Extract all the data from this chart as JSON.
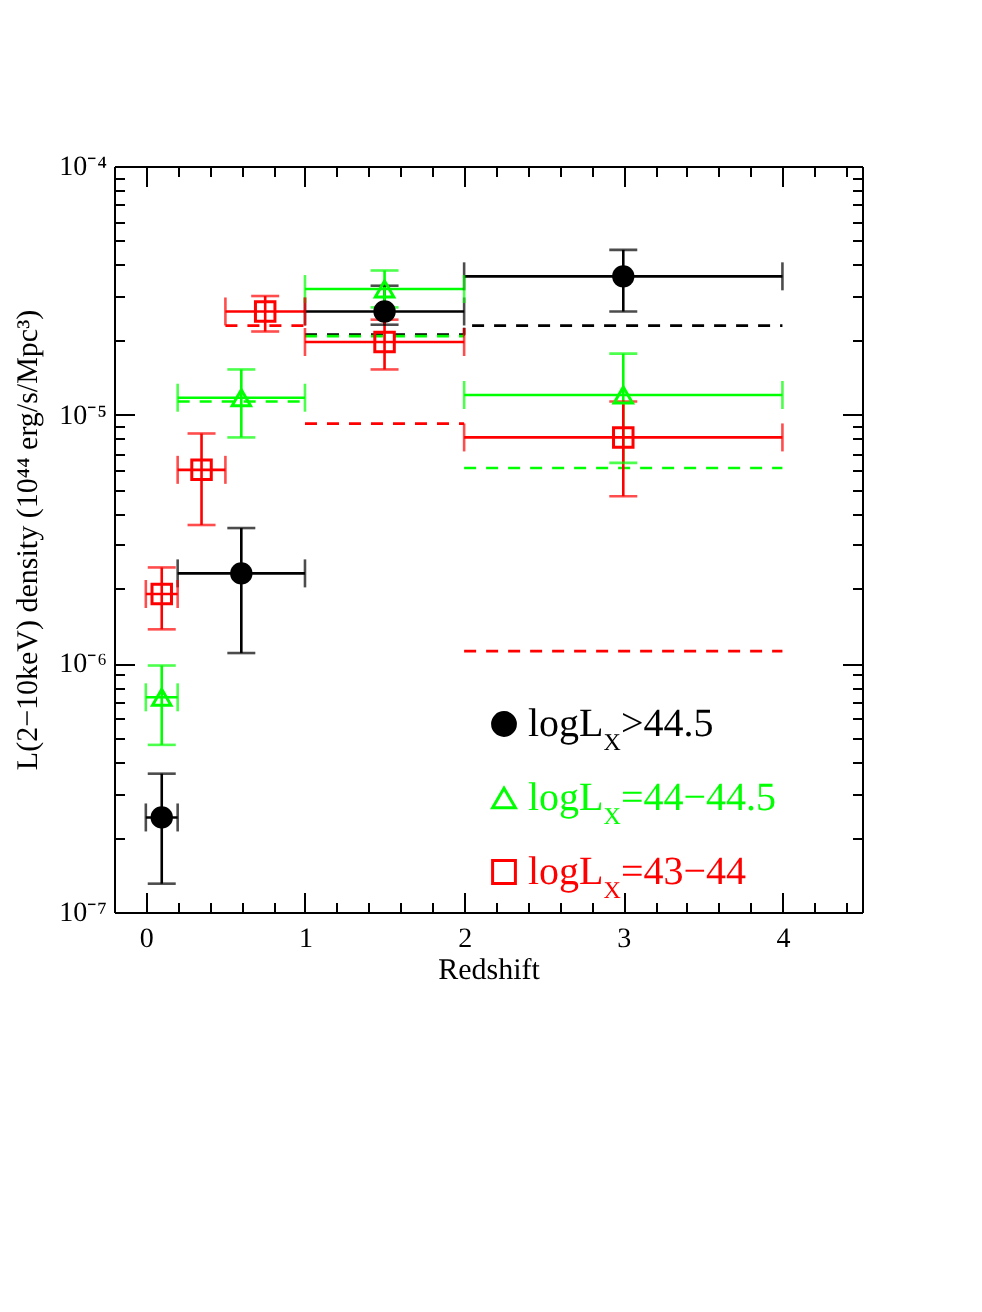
{
  "chart_data": {
    "type": "scatter",
    "xlabel": "Redshift",
    "ylabel": "L(2−10keV) density (10⁴⁴ erg/s/Mpc³)",
    "log": "y",
    "xlim": [
      -0.2,
      4.5
    ],
    "ylim": [
      1e-07,
      0.0001
    ],
    "xticks": [
      0,
      {
        "value": 0.2,
        "label": null
      },
      {
        "value": 0.4,
        "label": null
      },
      {
        "value": 0.6,
        "label": null
      },
      {
        "value": 0.8,
        "label": null
      },
      1,
      {
        "value": 1.2,
        "label": null
      },
      {
        "value": 1.4,
        "label": null
      },
      {
        "value": 1.6,
        "label": null
      },
      {
        "value": 1.8,
        "label": null
      },
      2,
      {
        "value": 2.2,
        "label": null
      },
      {
        "value": 2.4,
        "label": null
      },
      {
        "value": 2.6,
        "label": null
      },
      {
        "value": 2.8,
        "label": null
      },
      3,
      {
        "value": 3.2,
        "label": null
      },
      {
        "value": 3.4,
        "label": null
      },
      {
        "value": 3.6,
        "label": null
      },
      {
        "value": 3.8,
        "label": null
      },
      4,
      {
        "value": 4.2,
        "label": null
      },
      {
        "value": 4.4,
        "label": null
      }
    ],
    "yticks": [
      {
        "value": 1e-07,
        "label": "10⁻⁷"
      },
      {
        "value": 2e-07,
        "label": null
      },
      {
        "value": 3e-07,
        "label": null
      },
      {
        "value": 4e-07,
        "label": null
      },
      {
        "value": 5e-07,
        "label": null
      },
      {
        "value": 6e-07,
        "label": null
      },
      {
        "value": 7e-07,
        "label": null
      },
      {
        "value": 8e-07,
        "label": null
      },
      {
        "value": 9e-07,
        "label": null
      },
      {
        "value": 1e-06,
        "label": "10⁻⁶"
      },
      {
        "value": 2e-06,
        "label": null
      },
      {
        "value": 3e-06,
        "label": null
      },
      {
        "value": 4e-06,
        "label": null
      },
      {
        "value": 5e-06,
        "label": null
      },
      {
        "value": 6e-06,
        "label": null
      },
      {
        "value": 7e-06,
        "label": null
      },
      {
        "value": 8e-06,
        "label": null
      },
      {
        "value": 9e-06,
        "label": null
      },
      {
        "value": 1e-05,
        "label": "10⁻⁵"
      },
      {
        "value": 2e-05,
        "label": null
      },
      {
        "value": 3e-05,
        "label": null
      },
      {
        "value": 4e-05,
        "label": null
      },
      {
        "value": 5e-05,
        "label": null
      },
      {
        "value": 6e-05,
        "label": null
      },
      {
        "value": 7e-05,
        "label": null
      },
      {
        "value": 8e-05,
        "label": null
      },
      {
        "value": 9e-05,
        "label": null
      },
      {
        "value": 0.0001,
        "label": "10⁻⁴"
      }
    ],
    "legend": "bottom right",
    "series": [
      {
        "type": "line",
        "color": "#000000",
        "line_style": "dashed",
        "marker": "none",
        "x": [
          1,
          2,
          2,
          4
        ],
        "values": [
          2.1e-05,
          2.1e-05,
          2.28e-05,
          2.28e-05
        ]
      },
      {
        "type": "line",
        "color": "#00ff00",
        "line_style": "dashed",
        "marker": "none",
        "x": [
          0.2,
          1
        ],
        "values": [
          1.13e-05,
          1.13e-05
        ]
      },
      {
        "type": "line",
        "color": "#00ff00",
        "line_style": "dashed",
        "marker": "none",
        "x": [
          1,
          2
        ],
        "values": [
          2.07e-05,
          2.07e-05
        ]
      },
      {
        "type": "line",
        "color": "#00ff00",
        "line_style": "dashed",
        "marker": "none",
        "x": [
          2,
          4
        ],
        "values": [
          6.1e-06,
          6.1e-06
        ]
      },
      {
        "type": "line",
        "color": "#ff0000",
        "line_style": "dashed",
        "marker": "none",
        "x": [
          0.5,
          1
        ],
        "values": [
          2.28e-05,
          2.28e-05
        ]
      },
      {
        "type": "line",
        "color": "#ff0000",
        "line_style": "dashed",
        "marker": "none",
        "x": [
          1,
          2
        ],
        "values": [
          9.2e-06,
          9.2e-06
        ]
      },
      {
        "type": "line",
        "color": "#ff0000",
        "line_style": "dashed",
        "marker": "none",
        "x": [
          2,
          4
        ],
        "values": [
          1.12e-06,
          1.12e-06
        ]
      },
      {
        "name": "logL$_{X}$>44.5",
        "color": "#000000",
        "marker": "circle",
        "x": [
          0.1,
          0.6,
          1.5,
          3
        ],
        "values": [
          2.4e-07,
          2.3e-06,
          2.6e-05,
          3.6e-05
        ],
        "errors": [
          [
            1.3e-07,
            3.6e-07
          ],
          [
            1.1e-06,
            3.5e-06
          ],
          [
            2.3e-05,
            3.3e-05
          ],
          [
            2.6e-05,
            4.6e-05
          ]
        ],
        "xerrors": [
          0.1,
          0.4,
          0.5,
          1
        ]
      },
      {
        "name": "logL$_{X}$=44−44.5",
        "color": "#00ff00",
        "marker": "triangle",
        "x": [
          0.1,
          0.6,
          1.5,
          3
        ],
        "values": [
          7.3e-07,
          1.17e-05,
          3.2e-05,
          1.2e-05
        ],
        "errors": [
          [
            4.7e-07,
            9.8e-07
          ],
          [
            8.1e-06,
            1.52e-05
          ],
          [
            2.7e-05,
            3.8e-05
          ],
          [
            6.4e-06,
            1.76e-05
          ]
        ],
        "xerrors": [
          0.1,
          0.4,
          0.5,
          1
        ]
      },
      {
        "name": "logL$_{X}$=43−44",
        "color": "#ff0000",
        "marker": "square",
        "x": [
          0.1,
          0.35,
          0.75,
          1.5,
          3
        ],
        "values": [
          1.9e-06,
          6e-06,
          2.6e-05,
          1.96e-05,
          8.1e-06
        ],
        "errors": [
          [
            1.37e-06,
            2.43e-06
          ],
          [
            3.6e-06,
            8.4e-06
          ],
          [
            2.16e-05,
            3e-05
          ],
          [
            1.52e-05,
            2.41e-05
          ],
          [
            4.7e-06,
            1.13e-05
          ]
        ],
        "xerrors": [
          0.1,
          0.15,
          0.25,
          0.5,
          1
        ]
      }
    ]
  }
}
